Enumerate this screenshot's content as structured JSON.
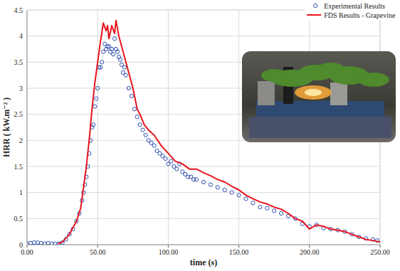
{
  "chart_data": {
    "type": "line",
    "xlabel": "time (s)",
    "ylabel": "HRR ( kW.m⁻² )",
    "xlim": [
      0,
      250
    ],
    "ylim": [
      0,
      4.5
    ],
    "xticks": [
      {
        "value": 0,
        "label": "0.00"
      },
      {
        "value": 50,
        "label": "50.00"
      },
      {
        "value": 100,
        "label": "100.00"
      },
      {
        "value": 150,
        "label": "150.00"
      },
      {
        "value": 200,
        "label": "200.00"
      },
      {
        "value": 250,
        "label": "250.00"
      }
    ],
    "yticks": [
      0,
      0.5,
      1,
      1.5,
      2,
      2.5,
      3,
      3.5,
      4,
      4.5
    ],
    "grid": true,
    "legend": "upper right",
    "series": [
      {
        "name": "Experimental Results",
        "color": "#2f4fb0",
        "type": "scatter",
        "marker": "circle-open",
        "x": [
          0,
          2.5,
          5,
          7.5,
          10,
          12.5,
          15,
          17.5,
          20,
          22.5,
          25,
          27.5,
          30,
          32.5,
          35,
          37,
          39,
          40,
          41,
          42,
          43,
          44,
          45,
          46,
          47,
          48,
          49,
          50,
          51,
          52,
          53,
          54,
          55,
          56,
          57,
          58,
          59,
          60,
          61,
          62,
          63,
          64,
          65,
          66,
          67,
          68,
          69,
          70,
          72,
          74,
          76,
          78,
          80,
          82,
          84,
          86,
          88,
          90,
          92,
          94,
          96,
          98,
          100,
          102,
          104,
          106,
          108,
          110,
          112,
          114,
          116,
          118,
          120,
          125,
          130,
          135,
          140,
          145,
          150,
          155,
          160,
          165,
          170,
          175,
          180,
          185,
          190,
          195,
          200,
          205,
          210,
          215,
          220,
          225,
          230,
          235,
          240,
          245,
          248
        ],
        "values": [
          0.02,
          0.03,
          0.04,
          0.04,
          0.03,
          0.02,
          0.03,
          0.02,
          0.02,
          0.02,
          0.04,
          0.1,
          0.2,
          0.3,
          0.45,
          0.6,
          0.85,
          1.0,
          1.15,
          1.3,
          1.5,
          1.75,
          2.0,
          2.25,
          2.3,
          2.65,
          2.8,
          3.0,
          3.4,
          3.4,
          3.5,
          3.7,
          3.85,
          3.75,
          3.8,
          3.8,
          3.7,
          3.75,
          3.65,
          3.95,
          3.75,
          3.7,
          3.6,
          3.55,
          3.45,
          3.3,
          3.4,
          3.25,
          3.0,
          2.85,
          2.6,
          2.45,
          2.3,
          2.2,
          2.1,
          2.0,
          1.95,
          1.9,
          1.8,
          1.75,
          1.7,
          1.65,
          1.55,
          1.6,
          1.5,
          1.45,
          1.55,
          1.4,
          1.35,
          1.3,
          1.3,
          1.25,
          1.25,
          1.2,
          1.15,
          1.1,
          1.05,
          1.0,
          0.95,
          0.88,
          0.8,
          0.72,
          0.7,
          0.65,
          0.6,
          0.55,
          0.5,
          0.4,
          0.35,
          0.38,
          0.32,
          0.3,
          0.28,
          0.25,
          0.2,
          0.15,
          0.12,
          0.1,
          0.08
        ]
      },
      {
        "name": "FDS Results - Grapevine",
        "color": "#e8141e",
        "type": "line",
        "line_style": "solid",
        "x": [
          22,
          25,
          30,
          35,
          38,
          40,
          42,
          44,
          46,
          48,
          50,
          52,
          54,
          56,
          57,
          58,
          60,
          62,
          63,
          65,
          67,
          70,
          72,
          75,
          78,
          80,
          83,
          86,
          90,
          95,
          100,
          105,
          110,
          115,
          120,
          125,
          130,
          135,
          140,
          145,
          150,
          155,
          160,
          165,
          170,
          175,
          180,
          185,
          190,
          195,
          200,
          205,
          210,
          215,
          220,
          225,
          230,
          235,
          240,
          245,
          250
        ],
        "values": [
          0.02,
          0.05,
          0.2,
          0.45,
          0.7,
          1.1,
          1.5,
          2.0,
          2.6,
          3.1,
          3.5,
          3.9,
          4.25,
          4.1,
          4.2,
          3.95,
          4.2,
          4.05,
          4.3,
          4.0,
          3.8,
          3.5,
          3.3,
          3.0,
          2.6,
          2.5,
          2.3,
          2.2,
          2.1,
          1.9,
          1.75,
          1.6,
          1.55,
          1.45,
          1.45,
          1.38,
          1.32,
          1.25,
          1.2,
          1.12,
          1.05,
          0.95,
          0.88,
          0.82,
          0.78,
          0.72,
          0.68,
          0.6,
          0.5,
          0.45,
          0.3,
          0.38,
          0.35,
          0.3,
          0.28,
          0.25,
          0.2,
          0.15,
          0.1,
          0.08,
          0.05
        ]
      }
    ]
  }
}
